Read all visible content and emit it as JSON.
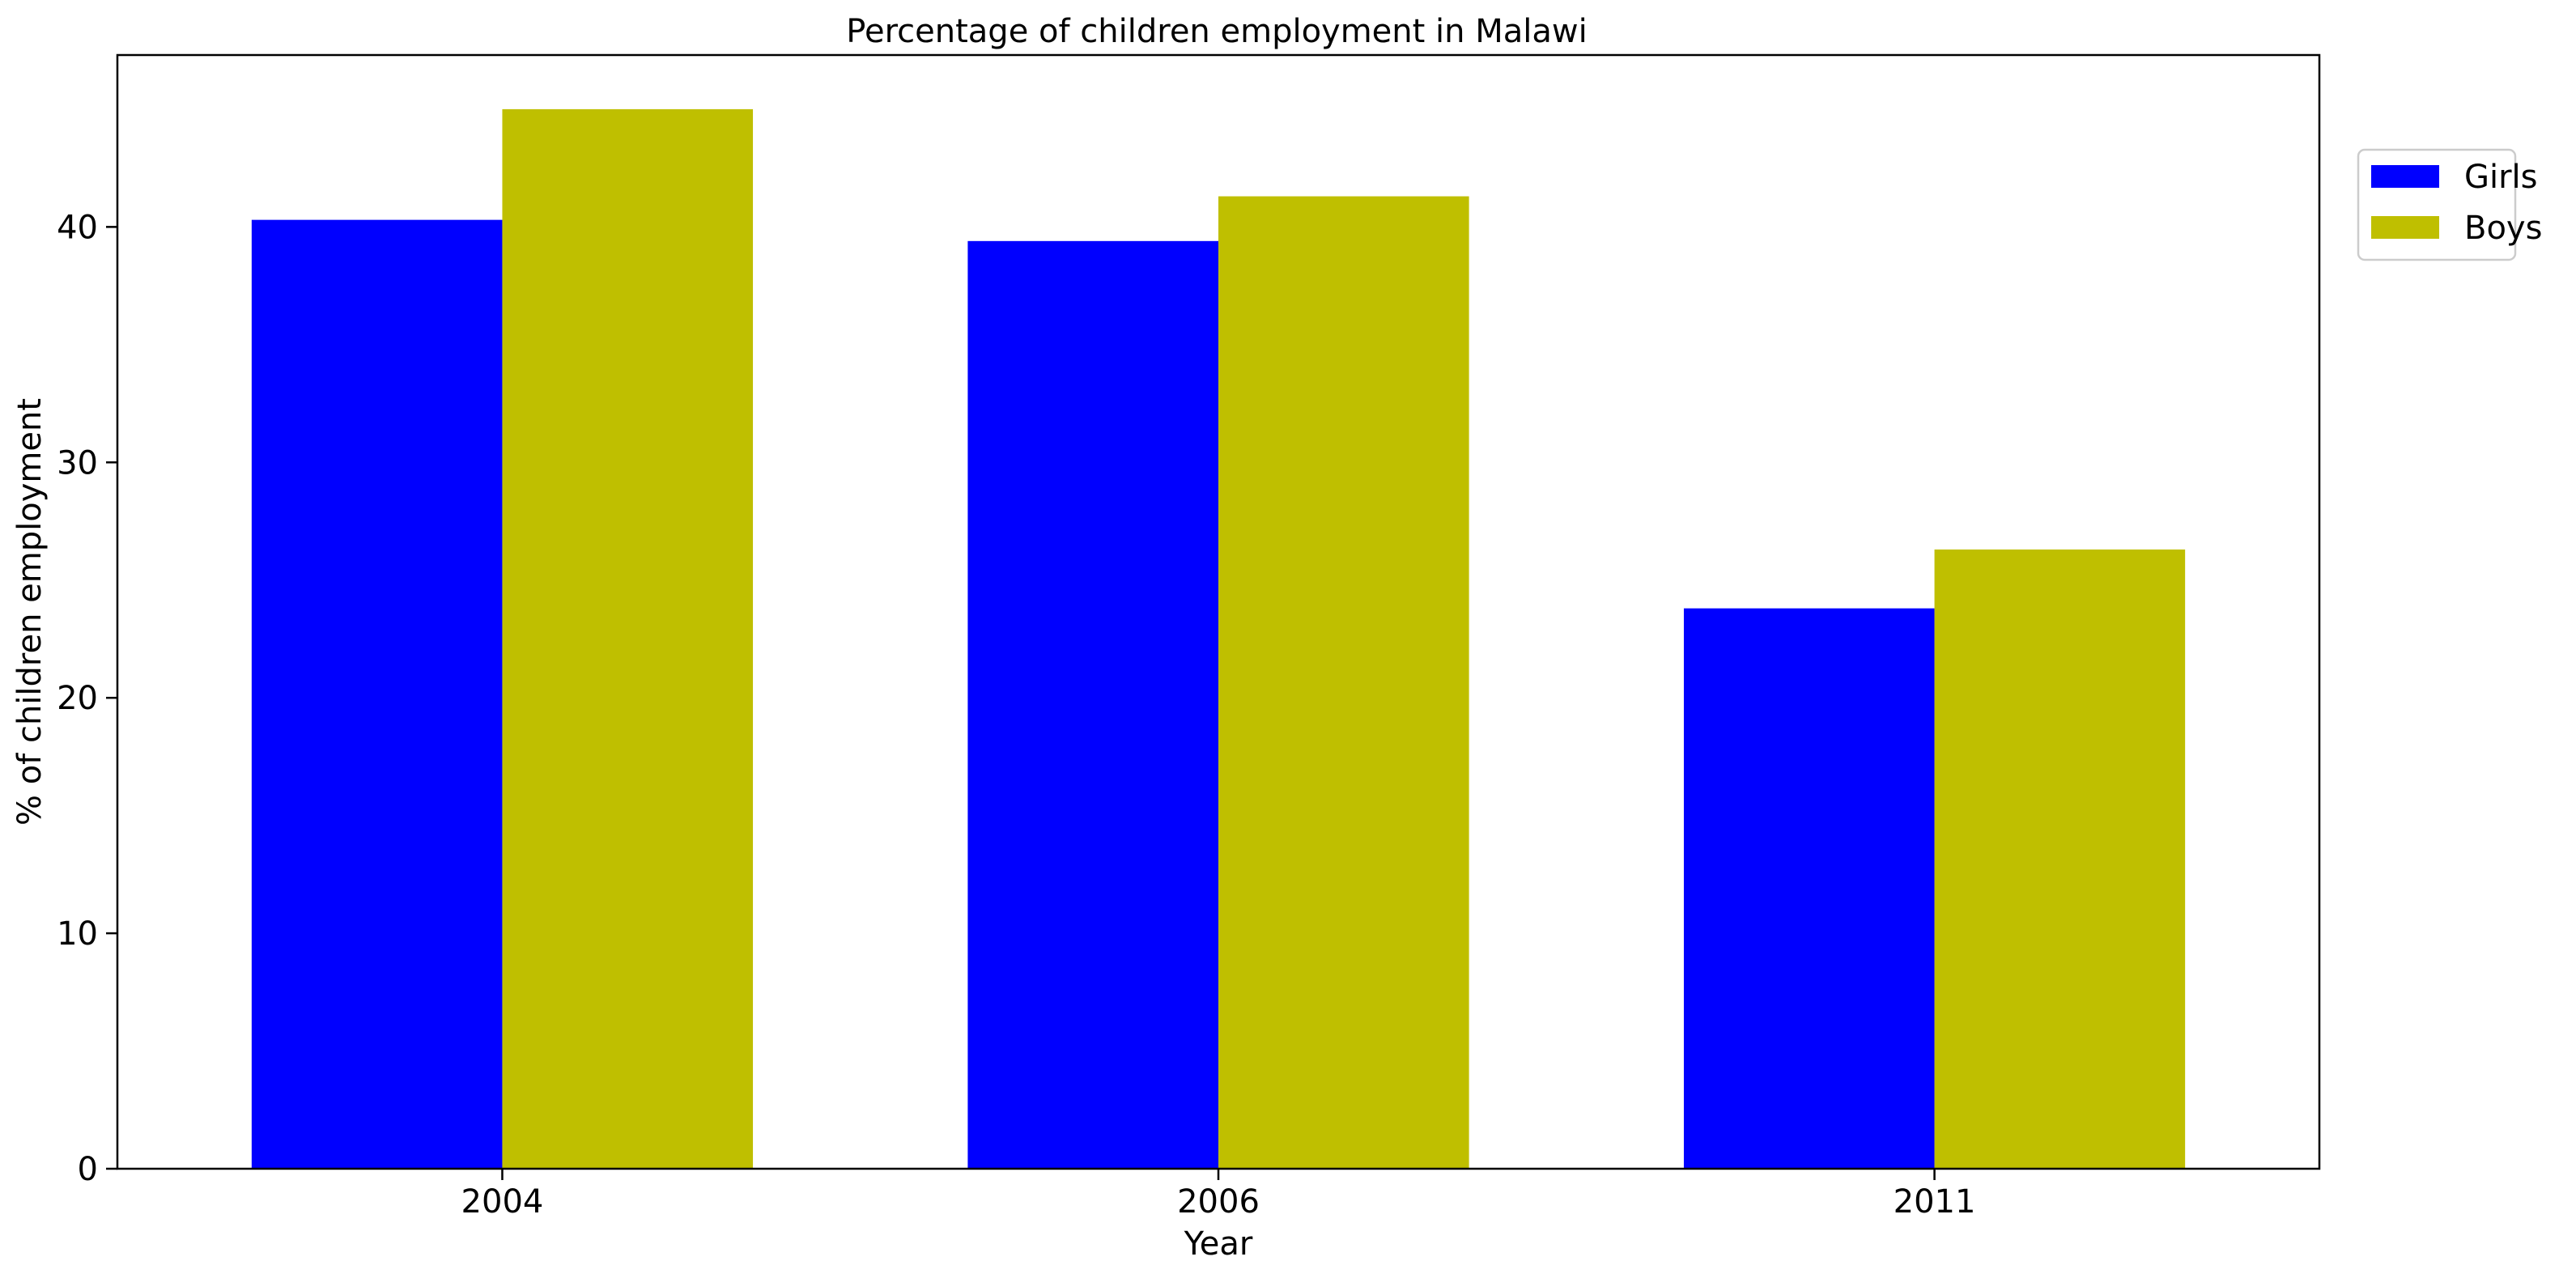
{
  "chart_data": {
    "type": "bar",
    "title": "Percentage of children employment in Malawi",
    "xlabel": "Year",
    "ylabel": "% of children employment",
    "categories": [
      "2004",
      "2006",
      "2011"
    ],
    "series": [
      {
        "name": "Girls",
        "color": "#0000ff",
        "values": [
          40.3,
          39.4,
          23.8
        ]
      },
      {
        "name": "Boys",
        "color": "#bfbf00",
        "values": [
          45.0,
          41.3,
          26.3
        ]
      }
    ],
    "ylim": [
      0,
      47.3
    ],
    "yticks": [
      0,
      10,
      20,
      30,
      40
    ],
    "grid": false,
    "legend": "top-right, outside plot"
  }
}
